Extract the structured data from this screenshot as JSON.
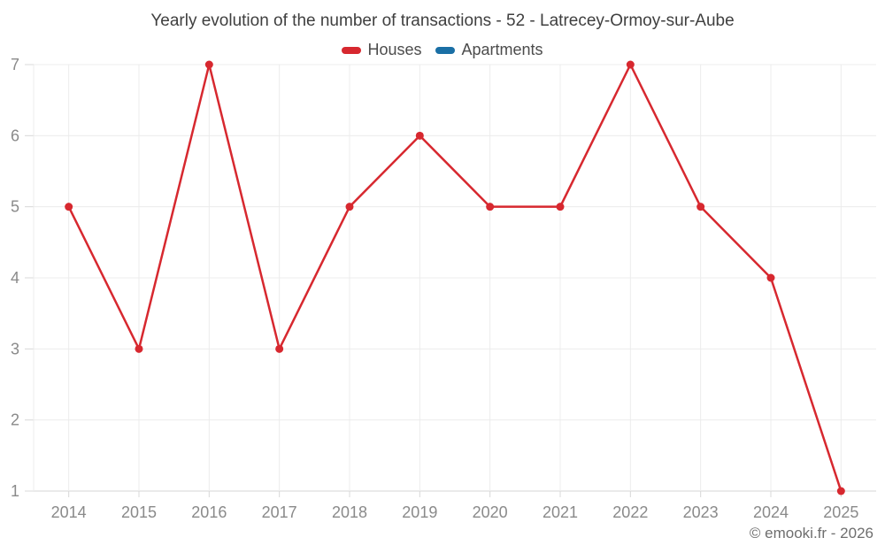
{
  "page": {
    "title": "Yearly evolution of the number of transactions - 52 - Latrecey-Ormoy-sur-Aube",
    "footer": "© emooki.fr - 2026"
  },
  "legend": {
    "items": [
      {
        "label": "Houses",
        "color": "#d7282f"
      },
      {
        "label": "Apartments",
        "color": "#1a6fa5"
      }
    ]
  },
  "colors": {
    "background": "#ffffff",
    "grid": "#ececec",
    "axis_line": "#d5d5d5",
    "tick": "#d8d8d8",
    "axis_text": "#8a8a8a",
    "title_text": "#3f3f3f",
    "legend_text": "#4c4c4c",
    "footer_text": "#6e6e6e",
    "houses_series": "#d7282f",
    "apartments_series": "#1a6fa5"
  },
  "chart_data": {
    "type": "line",
    "title": "Yearly evolution of the number of transactions - 52 - Latrecey-Ormoy-sur-Aube",
    "categories": [
      "2014",
      "2015",
      "2016",
      "2017",
      "2018",
      "2019",
      "2020",
      "2021",
      "2022",
      "2023",
      "2024",
      "2025"
    ],
    "series": [
      {
        "name": "Houses",
        "color": "#d7282f",
        "values": [
          5,
          3,
          7,
          3,
          5,
          6,
          5,
          5,
          7,
          5,
          4,
          1
        ]
      },
      {
        "name": "Apartments",
        "color": "#1a6fa5",
        "values": []
      }
    ],
    "ylim": [
      1,
      7
    ],
    "yticks": [
      1,
      2,
      3,
      4,
      5,
      6,
      7
    ],
    "grid": true,
    "legend_position": "top",
    "marker": "circle"
  }
}
